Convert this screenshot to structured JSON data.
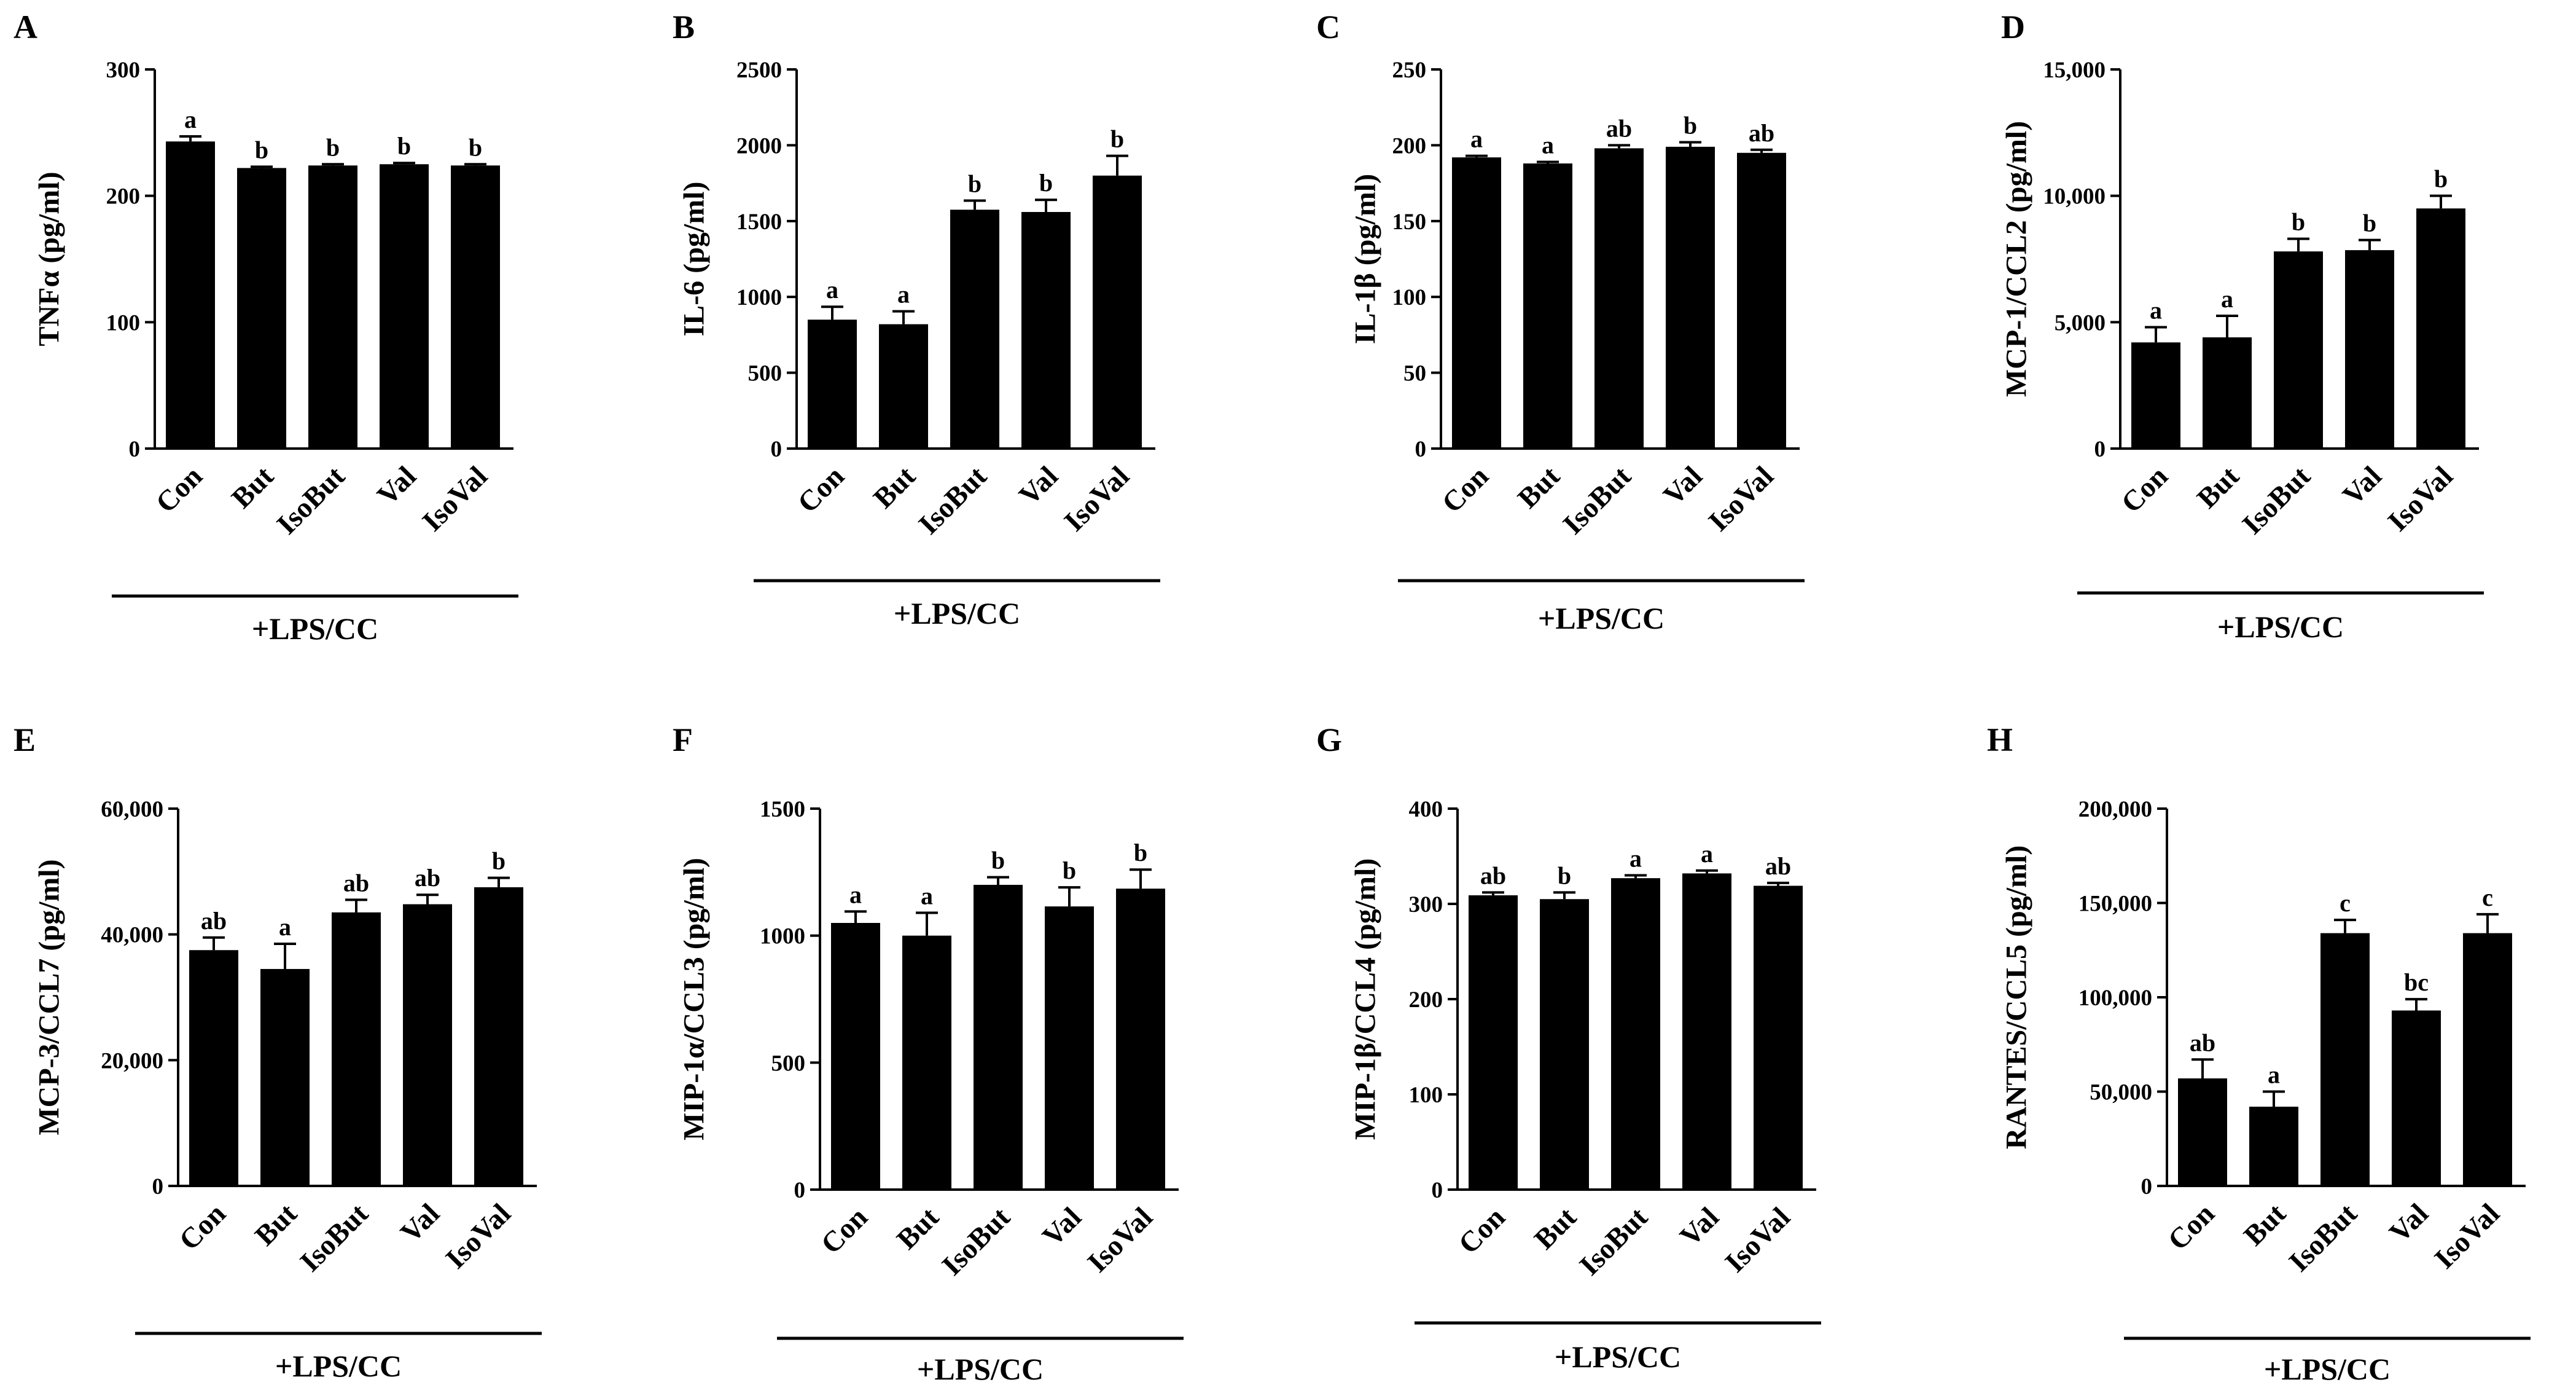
{
  "figure": {
    "categories": [
      "Con",
      "But",
      "IsoBut",
      "Val",
      "IsoVal"
    ],
    "group_label": "+LPS/CC",
    "bar_color": "#000000"
  },
  "chart_data": [
    {
      "panel": "A",
      "type": "bar",
      "ylabel": "TNFα (pg/ml)",
      "ylim": [
        0,
        300
      ],
      "yticks": [
        0,
        100,
        200,
        300
      ],
      "ytick_labels": [
        "0",
        "100",
        "200",
        "300"
      ],
      "categories": [
        "Con",
        "But",
        "IsoBut",
        "Val",
        "IsoVal"
      ],
      "values": [
        243,
        222,
        224,
        225,
        224
      ],
      "errors": [
        4,
        1,
        1,
        1,
        1
      ],
      "sig": [
        "a",
        "b",
        "b",
        "b",
        "b"
      ]
    },
    {
      "panel": "B",
      "type": "bar",
      "ylabel": "IL-6 (pg/ml)",
      "ylim": [
        0,
        2500
      ],
      "yticks": [
        0,
        500,
        1000,
        1500,
        2000,
        2500
      ],
      "ytick_labels": [
        "0",
        "500",
        "1000",
        "1500",
        "2000",
        "2500"
      ],
      "categories": [
        "Con",
        "But",
        "IsoBut",
        "Val",
        "IsoVal"
      ],
      "values": [
        850,
        820,
        1575,
        1560,
        1800
      ],
      "errors": [
        85,
        85,
        60,
        80,
        130
      ],
      "sig": [
        "a",
        "a",
        "b",
        "b",
        "b"
      ]
    },
    {
      "panel": "C",
      "type": "bar",
      "ylabel": "IL-1β (pg/ml)",
      "ylim": [
        0,
        250
      ],
      "yticks": [
        0,
        50,
        100,
        150,
        200,
        250
      ],
      "ytick_labels": [
        "0",
        "50",
        "100",
        "150",
        "200",
        "250"
      ],
      "categories": [
        "Con",
        "But",
        "IsoBut",
        "Val",
        "IsoVal"
      ],
      "values": [
        192,
        188,
        198,
        199,
        195
      ],
      "errors": [
        1,
        1,
        2,
        3,
        2
      ],
      "sig": [
        "a",
        "a",
        "ab",
        "b",
        "ab"
      ]
    },
    {
      "panel": "D",
      "type": "bar",
      "ylabel": "MCP-1/CCL2 (pg/ml)",
      "ylim": [
        0,
        15000
      ],
      "yticks": [
        0,
        5000,
        10000,
        15000
      ],
      "ytick_labels": [
        "0",
        "5,000",
        "10,000",
        "15,000"
      ],
      "categories": [
        "Con",
        "But",
        "IsoBut",
        "Val",
        "IsoVal"
      ],
      "values": [
        4200,
        4400,
        7800,
        7850,
        9500
      ],
      "errors": [
        600,
        850,
        500,
        400,
        500
      ],
      "sig": [
        "a",
        "a",
        "b",
        "b",
        "b"
      ]
    },
    {
      "panel": "E",
      "type": "bar",
      "ylabel": "MCP-3/CCL7 (pg/ml)",
      "ylim": [
        0,
        60000
      ],
      "yticks": [
        0,
        20000,
        40000,
        60000
      ],
      "ytick_labels": [
        "0",
        "20,000",
        "40,000",
        "60,000"
      ],
      "categories": [
        "Con",
        "But",
        "IsoBut",
        "Val",
        "IsoVal"
      ],
      "values": [
        37500,
        34500,
        43500,
        44800,
        47500
      ],
      "errors": [
        2000,
        4000,
        2000,
        1500,
        1500
      ],
      "sig": [
        "ab",
        "a",
        "ab",
        "ab",
        "b"
      ]
    },
    {
      "panel": "F",
      "type": "bar",
      "ylabel": "MIP-1α/CCL3 (pg/ml)",
      "ylim": [
        0,
        1500
      ],
      "yticks": [
        0,
        500,
        1000,
        1500
      ],
      "ytick_labels": [
        "0",
        "500",
        "1000",
        "1500"
      ],
      "categories": [
        "Con",
        "But",
        "IsoBut",
        "Val",
        "IsoVal"
      ],
      "values": [
        1050,
        1000,
        1200,
        1115,
        1185
      ],
      "errors": [
        45,
        90,
        30,
        75,
        75
      ],
      "sig": [
        "a",
        "a",
        "b",
        "b",
        "b"
      ]
    },
    {
      "panel": "G",
      "type": "bar",
      "ylabel": "MIP-1β/CCL4 (pg/ml)",
      "ylim": [
        0,
        400
      ],
      "yticks": [
        0,
        100,
        200,
        300,
        400
      ],
      "ytick_labels": [
        "0",
        "100",
        "200",
        "300",
        "400"
      ],
      "categories": [
        "Con",
        "But",
        "IsoBut",
        "Val",
        "IsoVal"
      ],
      "values": [
        309,
        305,
        327,
        332,
        319
      ],
      "errors": [
        3,
        7,
        3,
        3,
        3
      ],
      "sig": [
        "ab",
        "b",
        "a",
        "a",
        "ab"
      ]
    },
    {
      "panel": "H",
      "type": "bar",
      "ylabel": "RANTES/CCL5 (pg/ml)",
      "ylim": [
        0,
        200000
      ],
      "yticks": [
        0,
        50000,
        100000,
        150000,
        200000
      ],
      "ytick_labels": [
        "0",
        "50,000",
        "100,000",
        "150,000",
        "200,000"
      ],
      "categories": [
        "Con",
        "But",
        "IsoBut",
        "Val",
        "IsoVal"
      ],
      "values": [
        57000,
        42000,
        134000,
        93000,
        134000
      ],
      "errors": [
        10000,
        8000,
        7000,
        6000,
        10000
      ],
      "sig": [
        "ab",
        "a",
        "c",
        "bc",
        "c"
      ]
    }
  ]
}
